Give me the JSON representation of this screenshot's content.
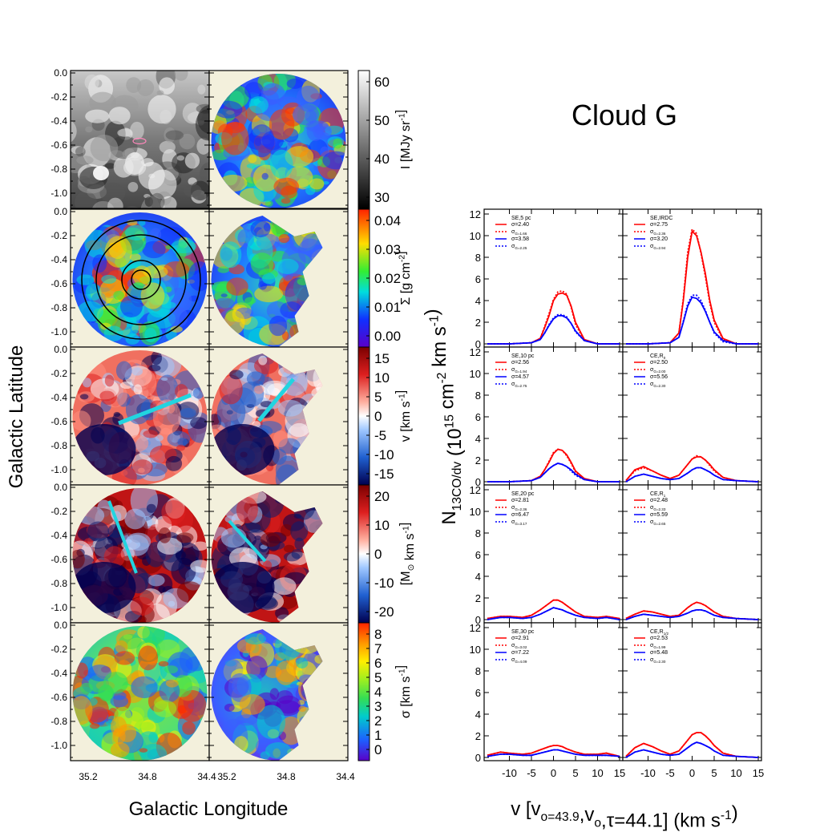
{
  "figure": {
    "title": "Cloud G",
    "left_xlabel": "Galactic Longitude",
    "left_ylabel": "Galactic Latitude",
    "right_xlabel": "v [v_o=43.9,v_o,τ=44.1] (km s^-1)",
    "right_ylabel": "N_13CO/dv (10^15 cm^-2 km s^-1)"
  },
  "maps": {
    "lat_ticks": [
      "0.0",
      "-0.2",
      "-0.4",
      "-0.6",
      "-0.8",
      "-1.0"
    ],
    "lon_ticks": [
      "35.2",
      "34.8",
      "34.4"
    ],
    "colorbars": [
      {
        "label": "I [MJy sr^-1]",
        "ticks": [
          "60",
          "50",
          "40",
          "30"
        ],
        "colors": [
          "#ffffff",
          "#000000"
        ]
      },
      {
        "label": "Σ [g cm^-2]",
        "ticks": [
          "0.04",
          "0.03",
          "0.02",
          "0.01",
          "0.00"
        ],
        "colors": [
          "#ff2200",
          "#ffdd00",
          "#33ee33",
          "#00dddd",
          "#1030ff",
          "#5a00c8"
        ]
      },
      {
        "label": "v [km s^-1]",
        "ticks": [
          "15",
          "10",
          "5",
          "0",
          "-5",
          "-10",
          "-15"
        ],
        "colors": [
          "#7a0000",
          "#dd1f1f",
          "#ffb0a0",
          "#ffffff",
          "#a0c8ff",
          "#2060d0",
          "#000050"
        ]
      },
      {
        "label": "[M_⊙ km s^-1]",
        "ticks": [
          "20",
          "10",
          "0",
          "-10",
          "-20"
        ],
        "colors": [
          "#7a0000",
          "#dd1f1f",
          "#ffb0a0",
          "#ffffff",
          "#a0c8ff",
          "#2060d0",
          "#000050"
        ]
      },
      {
        "label": "σ [km s^-1]",
        "ticks": [
          "8",
          "7",
          "6",
          "5",
          "4",
          "3",
          "2",
          "1",
          "0"
        ],
        "colors": [
          "#ff2200",
          "#ff9900",
          "#ffee00",
          "#99ee22",
          "#33dd55",
          "#00cccc",
          "#1d5fff",
          "#5a00c8"
        ]
      }
    ]
  },
  "chart_data": [
    {
      "type": "line",
      "panel": "SE,5 pc",
      "x": [
        -15,
        -10,
        -5,
        -3,
        -2,
        -1,
        0,
        1,
        2,
        3,
        4,
        5,
        7,
        10,
        15
      ],
      "series": [
        {
          "name": "σ=2.40",
          "style": "solid",
          "color": "#ff0000",
          "values": [
            0,
            0,
            0.1,
            0.5,
            1.5,
            2.6,
            4.0,
            4.6,
            4.7,
            4.5,
            3.5,
            2.0,
            0.4,
            0,
            0
          ]
        },
        {
          "name": "σ_G=1.66",
          "style": "dotted",
          "color": "#ff0000",
          "values": [
            0,
            0,
            0.1,
            0.5,
            1.6,
            2.8,
            4.1,
            4.8,
            4.9,
            4.6,
            3.4,
            1.8,
            0.3,
            0,
            0
          ]
        },
        {
          "name": "σ=3.58",
          "style": "solid",
          "color": "#0000ff",
          "values": [
            0,
            0,
            0.1,
            0.4,
            1.0,
            1.7,
            2.3,
            2.6,
            2.6,
            2.4,
            1.9,
            1.2,
            0.3,
            0,
            0
          ]
        },
        {
          "name": "σ_G=2.25",
          "style": "dotted",
          "color": "#0000ff",
          "values": [
            0,
            0,
            0.1,
            0.4,
            1.0,
            1.8,
            2.4,
            2.7,
            2.7,
            2.5,
            1.9,
            1.1,
            0.3,
            0,
            0
          ]
        }
      ],
      "ylim": [
        0,
        12
      ],
      "xlim": [
        -15,
        15
      ]
    },
    {
      "type": "line",
      "panel": "SE,IRDC",
      "x": [
        -15,
        -10,
        -5,
        -3,
        -2,
        -1,
        0,
        1,
        2,
        3,
        4,
        5,
        7,
        10,
        15
      ],
      "series": [
        {
          "name": "σ=2.75",
          "style": "solid",
          "color": "#ff0000",
          "values": [
            0,
            0,
            0.1,
            1.0,
            4.0,
            8.0,
            10.4,
            10.0,
            8.5,
            6.5,
            4.0,
            2.2,
            0.5,
            0,
            0
          ]
        },
        {
          "name": "σ_G=2.36",
          "style": "dotted",
          "color": "#ff0000",
          "values": [
            0,
            0,
            0.1,
            1.0,
            4.2,
            8.5,
            10.6,
            10.2,
            8.4,
            6.2,
            3.8,
            2.0,
            0.4,
            0,
            0
          ]
        },
        {
          "name": "σ=3.20",
          "style": "solid",
          "color": "#0000ff",
          "values": [
            0,
            0,
            0.1,
            0.6,
            2.0,
            3.5,
            4.3,
            4.2,
            3.8,
            3.0,
            2.0,
            1.1,
            0.3,
            0,
            0
          ]
        },
        {
          "name": "σ_G=2.94",
          "style": "dotted",
          "color": "#0000ff",
          "values": [
            0,
            0,
            0.1,
            0.6,
            2.1,
            3.7,
            4.5,
            4.5,
            4.0,
            3.1,
            2.0,
            1.0,
            0.2,
            0,
            0
          ]
        }
      ],
      "ylim": [
        0,
        12
      ],
      "xlim": [
        -15,
        15
      ]
    },
    {
      "type": "line",
      "panel": "SE,10 pc",
      "x": [
        -15,
        -10,
        -5,
        -3,
        -2,
        -1,
        0,
        1,
        2,
        3,
        4,
        5,
        7,
        10,
        15
      ],
      "series": [
        {
          "name": "σ=2.56",
          "style": "solid",
          "color": "#ff0000",
          "values": [
            0,
            0,
            0.1,
            0.5,
            1.1,
            1.8,
            2.6,
            3.0,
            2.9,
            2.5,
            1.8,
            1.0,
            0.3,
            0,
            0
          ]
        },
        {
          "name": "σ_G=1.94",
          "style": "dotted",
          "color": "#ff0000",
          "values": [
            0,
            0,
            0.1,
            0.5,
            1.1,
            1.9,
            2.7,
            3.0,
            2.9,
            2.4,
            1.7,
            0.9,
            0.2,
            0,
            0
          ]
        },
        {
          "name": "σ=4.57",
          "style": "solid",
          "color": "#0000ff",
          "values": [
            0,
            0,
            0.1,
            0.4,
            0.8,
            1.2,
            1.5,
            1.7,
            1.6,
            1.4,
            1.1,
            0.7,
            0.2,
            0,
            0
          ]
        },
        {
          "name": "σ_G=2.75",
          "style": "dotted",
          "color": "#0000ff",
          "values": [
            0,
            0,
            0.1,
            0.4,
            0.8,
            1.2,
            1.5,
            1.7,
            1.6,
            1.4,
            1.0,
            0.6,
            0.2,
            0,
            0
          ]
        }
      ],
      "ylim": [
        0,
        12
      ],
      "xlim": [
        -15,
        15
      ]
    },
    {
      "type": "line",
      "panel": "CE,R_0",
      "x": [
        -15,
        -13,
        -11,
        -9,
        -7,
        -5,
        -3,
        -1,
        0,
        1,
        2,
        3,
        4,
        5,
        7,
        10,
        15
      ],
      "series": [
        {
          "name": "σ=2.50",
          "style": "solid",
          "color": "#ff0000",
          "values": [
            0.1,
            1.1,
            1.4,
            1.0,
            0.6,
            0.3,
            0.6,
            1.6,
            2.1,
            2.3,
            2.3,
            2.0,
            1.6,
            1.1,
            0.4,
            0.1,
            0
          ]
        },
        {
          "name": "σ_G=2.00",
          "style": "dotted",
          "color": "#ff0000",
          "values": [
            0.1,
            1.0,
            1.3,
            1.0,
            0.6,
            0.3,
            0.6,
            1.6,
            2.1,
            2.4,
            2.3,
            2.0,
            1.5,
            1.0,
            0.4,
            0.1,
            0
          ]
        },
        {
          "name": "σ=5.56",
          "style": "solid",
          "color": "#0000ff",
          "values": [
            0,
            0.5,
            0.7,
            0.5,
            0.3,
            0.2,
            0.3,
            0.8,
            1.1,
            1.3,
            1.3,
            1.1,
            0.9,
            0.6,
            0.2,
            0.1,
            0
          ]
        },
        {
          "name": "σ_G=2.30",
          "style": "dotted",
          "color": "#0000ff",
          "values": [
            0,
            0.5,
            0.7,
            0.5,
            0.3,
            0.2,
            0.3,
            0.8,
            1.1,
            1.3,
            1.3,
            1.1,
            0.9,
            0.6,
            0.2,
            0.1,
            0
          ]
        }
      ],
      "ylim": [
        0,
        12
      ],
      "xlim": [
        -15,
        15
      ]
    },
    {
      "type": "line",
      "panel": "SE,20 pc",
      "x": [
        -15,
        -12,
        -10,
        -7,
        -5,
        -3,
        -1,
        0,
        1,
        2,
        3,
        5,
        7,
        10,
        12,
        15
      ],
      "series": [
        {
          "name": "σ=2.81",
          "style": "solid",
          "color": "#ff0000",
          "values": [
            0.1,
            0.3,
            0.3,
            0.2,
            0.4,
            0.9,
            1.5,
            1.8,
            1.8,
            1.6,
            1.3,
            0.7,
            0.3,
            0.2,
            0.3,
            0.1
          ]
        },
        {
          "name": "σ_G=2.36",
          "style": "dotted",
          "color": "#ff0000",
          "values": [
            0.1,
            0.3,
            0.3,
            0.2,
            0.4,
            0.9,
            1.5,
            1.8,
            1.8,
            1.6,
            1.3,
            0.7,
            0.3,
            0.2,
            0.3,
            0.1
          ]
        },
        {
          "name": "σ=6.47",
          "style": "solid",
          "color": "#0000ff",
          "values": [
            0,
            0.2,
            0.2,
            0.1,
            0.2,
            0.5,
            0.9,
            1.1,
            1.0,
            0.9,
            0.7,
            0.4,
            0.2,
            0.1,
            0.2,
            0
          ]
        },
        {
          "name": "σ_G=3.17",
          "style": "dotted",
          "color": "#0000ff",
          "values": [
            0,
            0.2,
            0.2,
            0.1,
            0.2,
            0.5,
            0.9,
            1.1,
            1.0,
            0.9,
            0.7,
            0.4,
            0.2,
            0.1,
            0.2,
            0
          ]
        }
      ],
      "ylim": [
        0,
        12
      ],
      "xlim": [
        -15,
        15
      ]
    },
    {
      "type": "line",
      "panel": "CE,R_1",
      "x": [
        -15,
        -13,
        -11,
        -9,
        -7,
        -5,
        -3,
        -1,
        0,
        1,
        2,
        3,
        4,
        5,
        7,
        10,
        15
      ],
      "series": [
        {
          "name": "σ=2.48",
          "style": "solid",
          "color": "#ff0000",
          "values": [
            0.1,
            0.5,
            0.8,
            0.7,
            0.5,
            0.3,
            0.4,
            1.1,
            1.4,
            1.6,
            1.5,
            1.3,
            1.0,
            0.7,
            0.3,
            0.1,
            0
          ]
        },
        {
          "name": "σ_G=2.33",
          "style": "dotted",
          "color": "#ff0000",
          "values": [
            0.1,
            0.5,
            0.8,
            0.7,
            0.5,
            0.3,
            0.4,
            1.1,
            1.4,
            1.6,
            1.5,
            1.3,
            1.0,
            0.7,
            0.3,
            0.1,
            0
          ]
        },
        {
          "name": "σ=5.59",
          "style": "solid",
          "color": "#0000ff",
          "values": [
            0,
            0.3,
            0.5,
            0.4,
            0.3,
            0.2,
            0.3,
            0.6,
            0.8,
            0.9,
            0.9,
            0.8,
            0.6,
            0.4,
            0.2,
            0.1,
            0
          ]
        },
        {
          "name": "σ_G=2.65",
          "style": "dotted",
          "color": "#0000ff",
          "values": [
            0,
            0.3,
            0.5,
            0.4,
            0.3,
            0.2,
            0.3,
            0.6,
            0.8,
            0.9,
            0.9,
            0.8,
            0.6,
            0.4,
            0.2,
            0.1,
            0
          ]
        }
      ],
      "ylim": [
        0,
        12
      ],
      "xlim": [
        -15,
        15
      ]
    },
    {
      "type": "line",
      "panel": "SE,30 pc",
      "x": [
        -15,
        -12,
        -10,
        -7,
        -5,
        -3,
        -1,
        0,
        1,
        2,
        3,
        5,
        7,
        10,
        12,
        15
      ],
      "series": [
        {
          "name": "σ=2.91",
          "style": "solid",
          "color": "#ff0000",
          "values": [
            0.2,
            0.5,
            0.4,
            0.3,
            0.4,
            0.7,
            1.0,
            1.1,
            1.1,
            1.0,
            0.8,
            0.5,
            0.3,
            0.3,
            0.4,
            0.1
          ]
        },
        {
          "name": "σ_G=3.02",
          "style": "dotted",
          "color": "#ff0000",
          "values": [
            0.2,
            0.5,
            0.4,
            0.3,
            0.4,
            0.7,
            1.0,
            1.1,
            1.1,
            1.0,
            0.8,
            0.5,
            0.3,
            0.3,
            0.4,
            0.1
          ]
        },
        {
          "name": "σ=7.22",
          "style": "solid",
          "color": "#0000ff",
          "values": [
            0.1,
            0.3,
            0.3,
            0.2,
            0.2,
            0.4,
            0.6,
            0.7,
            0.7,
            0.6,
            0.5,
            0.3,
            0.2,
            0.2,
            0.2,
            0.1
          ]
        },
        {
          "name": "σ_G=4.09",
          "style": "dotted",
          "color": "#0000ff",
          "values": [
            0.1,
            0.3,
            0.3,
            0.2,
            0.2,
            0.4,
            0.6,
            0.7,
            0.7,
            0.6,
            0.5,
            0.3,
            0.2,
            0.2,
            0.2,
            0.1
          ]
        }
      ],
      "ylim": [
        0,
        12
      ],
      "xlim": [
        -15,
        15
      ]
    },
    {
      "type": "line",
      "panel": "CE,R_1/2",
      "x": [
        -15,
        -13,
        -11,
        -9,
        -7,
        -5,
        -3,
        -1,
        0,
        1,
        2,
        3,
        4,
        5,
        7,
        10,
        15
      ],
      "series": [
        {
          "name": "σ=2.53",
          "style": "solid",
          "color": "#ff0000",
          "values": [
            0.1,
            0.9,
            1.3,
            1.0,
            0.6,
            0.3,
            0.6,
            1.6,
            2.1,
            2.3,
            2.3,
            2.0,
            1.6,
            1.1,
            0.4,
            0.1,
            0
          ]
        },
        {
          "name": "σ_G=1.99",
          "style": "dotted",
          "color": "#ff0000",
          "values": [
            0.1,
            0.9,
            1.3,
            1.0,
            0.6,
            0.3,
            0.6,
            1.6,
            2.1,
            2.3,
            2.3,
            2.0,
            1.6,
            1.1,
            0.4,
            0.1,
            0
          ]
        },
        {
          "name": "σ=5.48",
          "style": "solid",
          "color": "#0000ff",
          "values": [
            0,
            0.5,
            0.7,
            0.5,
            0.3,
            0.2,
            0.3,
            0.9,
            1.2,
            1.4,
            1.3,
            1.1,
            0.9,
            0.6,
            0.2,
            0.1,
            0
          ]
        },
        {
          "name": "σ_G=2.30",
          "style": "dotted",
          "color": "#0000ff",
          "values": [
            0,
            0.5,
            0.7,
            0.5,
            0.3,
            0.2,
            0.3,
            0.9,
            1.2,
            1.4,
            1.3,
            1.1,
            0.9,
            0.6,
            0.2,
            0.1,
            0
          ]
        }
      ],
      "ylim": [
        0,
        12
      ],
      "xlim": [
        -15,
        15
      ]
    }
  ]
}
